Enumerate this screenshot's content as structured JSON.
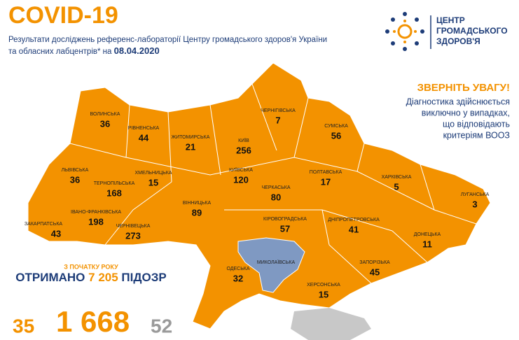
{
  "header": {
    "title": "COVID-19",
    "subtitle_line1": "Результати досліджень референс-лабораторії Центру громадського здоров'я України",
    "subtitle_line2": "та обласних лабцентрів* на",
    "date": "08.04.2020"
  },
  "logo": {
    "lines": [
      "ЦЕНТР",
      "ГРОМАДСЬКОГО",
      "ЗДОРОВ'Я"
    ]
  },
  "notice": {
    "title": "ЗВЕРНІТЬ УВАГУ!",
    "lines": [
      "Діагностика здійснюється",
      "виключно у випадках,",
      "що відповідають",
      "критеріям ВООЗ"
    ]
  },
  "regions": [
    {
      "name": "ВОЛИНСЬКА",
      "value": "36"
    },
    {
      "name": "РІВНЕНСЬКА",
      "value": "44"
    },
    {
      "name": "ЖИТОМИРСЬКА",
      "value": "21"
    },
    {
      "name": "КИЇВ",
      "value": "256"
    },
    {
      "name": "ЧЕРНІГІВСЬКА",
      "value": "7"
    },
    {
      "name": "СУМСЬКА",
      "value": "56"
    },
    {
      "name": "ЛЬВІВСЬКА",
      "value": "36"
    },
    {
      "name": "ТЕРНОПІЛЬСЬКА",
      "value": "168"
    },
    {
      "name": "ХМЕЛЬНИЦЬКА",
      "value": "15"
    },
    {
      "name": "КИЇВСЬКА",
      "value": "120"
    },
    {
      "name": "ПОЛТАВСЬКА",
      "value": "17"
    },
    {
      "name": "ХАРКІВСЬКА",
      "value": "5"
    },
    {
      "name": "ЛУГАНСЬКА",
      "value": "3"
    },
    {
      "name": "ЧЕРКАСЬКА",
      "value": "80"
    },
    {
      "name": "ВІННИЦЬКА",
      "value": "89"
    },
    {
      "name": "ІВАНО-ФРАНКІВСЬКА",
      "value": "198"
    },
    {
      "name": "ЗАКАРПАТСЬКА",
      "value": "43"
    },
    {
      "name": "ЧЕРНІВЕЦЬКА",
      "value": "273"
    },
    {
      "name": "КІРОВОГРАДСЬКА",
      "value": "57"
    },
    {
      "name": "ДНІПРОПЕТРОВСЬКА",
      "value": "41"
    },
    {
      "name": "ДОНЕЦЬКА",
      "value": "11"
    },
    {
      "name": "МИКОЛАЇВСЬКА"
    },
    {
      "name": "ОДЕСЬКА",
      "value": "32"
    },
    {
      "name": "ЗАПОРІЗЬКА",
      "value": "45"
    },
    {
      "name": "ХЕРСОНСЬКА",
      "value": "15"
    }
  ],
  "summary": {
    "since": "З ПОЧАТКУ РОКУ",
    "received": "ОТРИМАНО",
    "count": "7 205",
    "suspicions": "ПІДОЗР"
  },
  "bottom": {
    "left": "35",
    "center": "1 668",
    "right": "52"
  }
}
